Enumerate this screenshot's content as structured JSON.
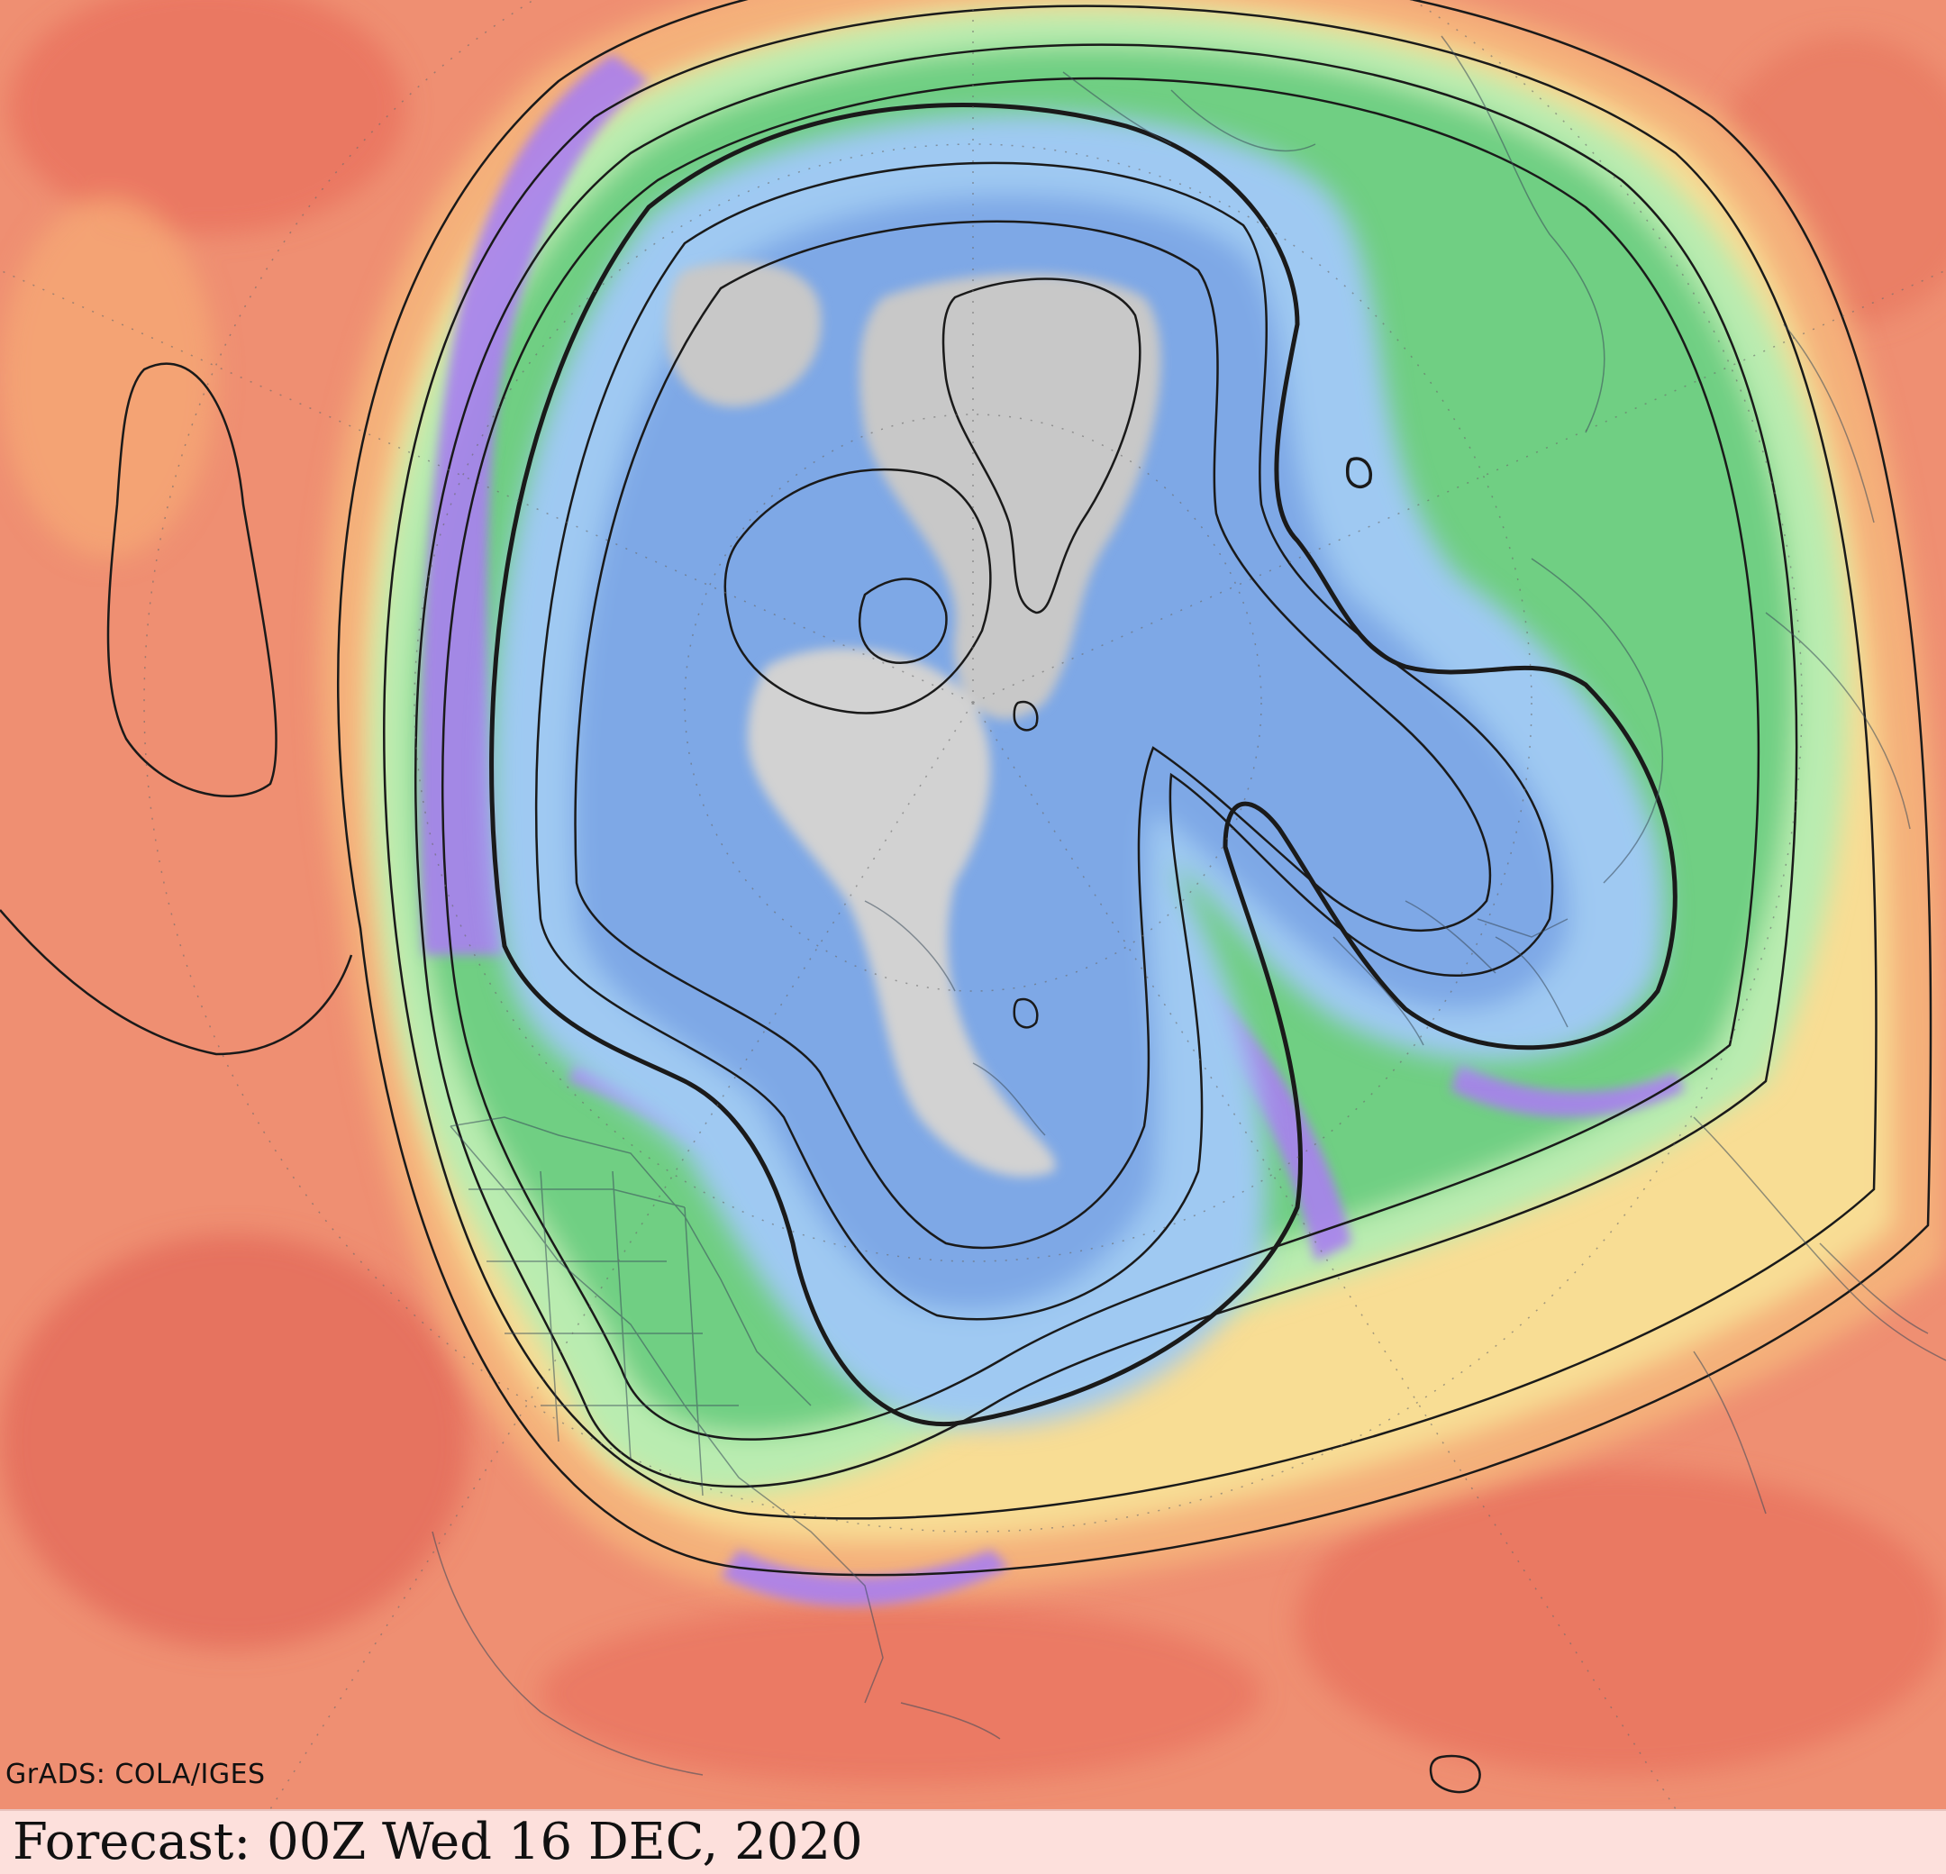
{
  "map": {
    "projection": "polar-stereographic",
    "hemisphere": "northern",
    "colors": {
      "warm_background": "#ef8f72",
      "tropical_red": "#e86d5c",
      "orange_band": "#f4b07a",
      "yellow_band": "#f8dd94",
      "light_green": "#b9ecb0",
      "green": "#6fcf83",
      "purple_jet": "#a97ff0",
      "light_blue": "#9fc9f2",
      "blue": "#7ea8e6",
      "gray_core": "#c8c8c8"
    }
  },
  "credit": {
    "text": "GrADS: COLA/IGES"
  },
  "footer": {
    "text": "Forecast: 00Z Wed 16 DEC, 2020"
  }
}
